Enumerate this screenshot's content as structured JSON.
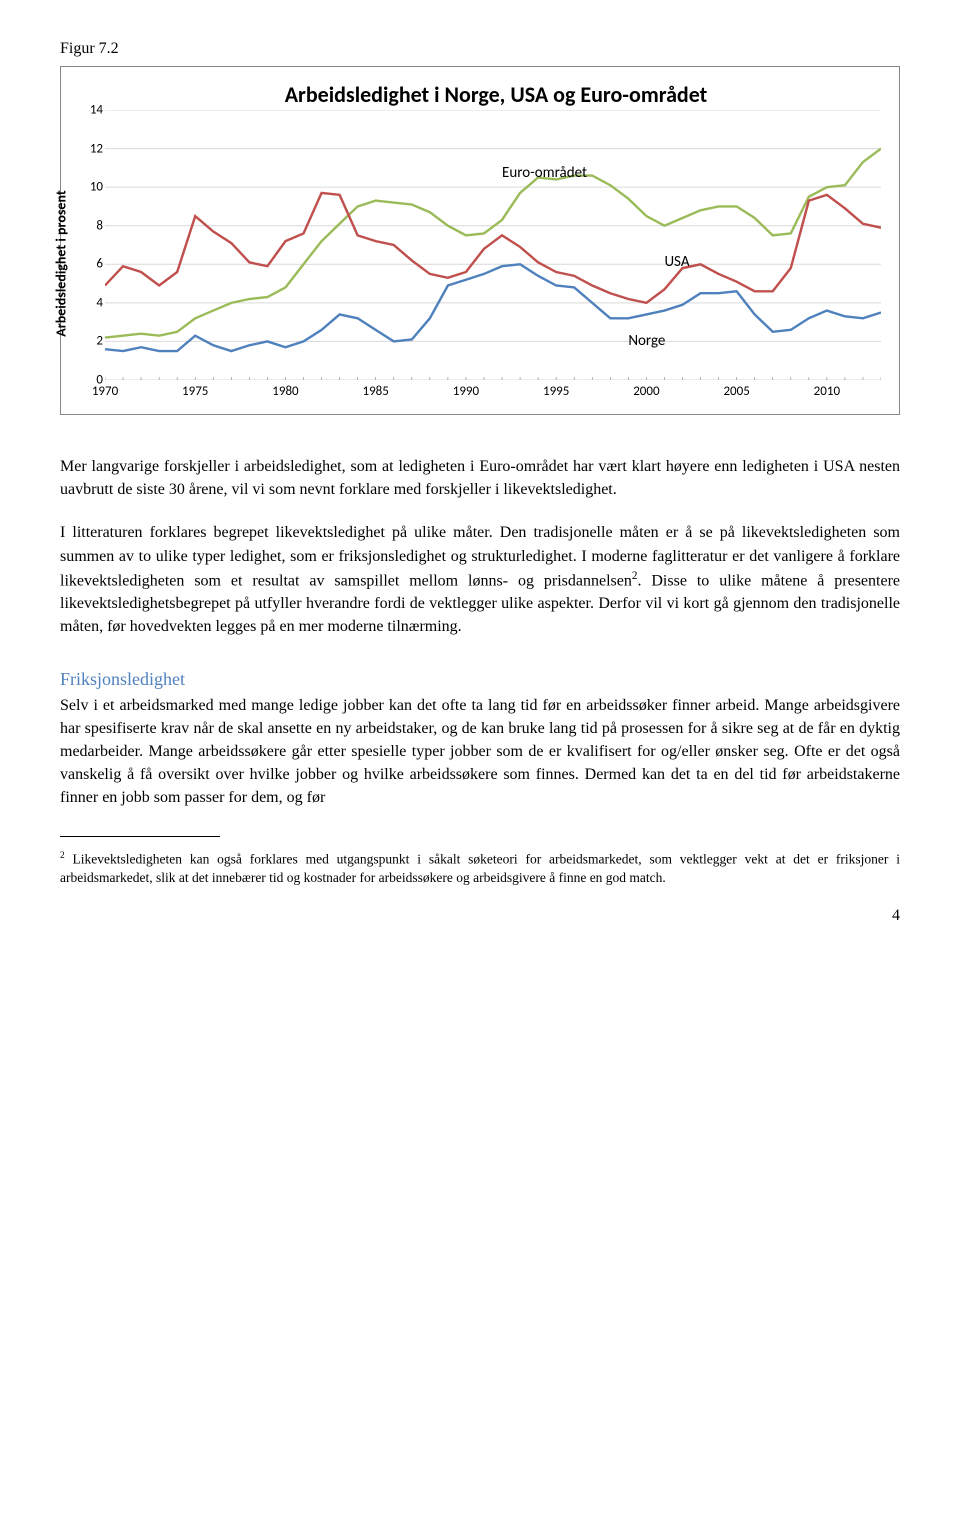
{
  "figure_label": "Figur 7.2",
  "chart": {
    "type": "line",
    "title": "Arbeidsledighet i Norge, USA og Euro-området",
    "y_axis_label": "Arbeidsledighet i prosent",
    "ylim": [
      0,
      14
    ],
    "ytick_step": 2,
    "yticks": [
      0,
      2,
      4,
      6,
      8,
      10,
      12,
      14
    ],
    "xlim": [
      1970,
      2013
    ],
    "xticks": [
      1970,
      1975,
      1980,
      1985,
      1990,
      1995,
      2000,
      2005,
      2010
    ],
    "background_color": "#ffffff",
    "grid_color": "#d9d9d9",
    "line_width": 2.4,
    "series": [
      {
        "name": "Euro-området",
        "label": "Euro-området",
        "color": "#9bbb59",
        "label_x": 1992,
        "label_y": 11.2,
        "points": [
          [
            1970,
            2.2
          ],
          [
            1971,
            2.3
          ],
          [
            1972,
            2.4
          ],
          [
            1973,
            2.3
          ],
          [
            1974,
            2.5
          ],
          [
            1975,
            3.2
          ],
          [
            1976,
            3.6
          ],
          [
            1977,
            4.0
          ],
          [
            1978,
            4.2
          ],
          [
            1979,
            4.3
          ],
          [
            1980,
            4.8
          ],
          [
            1981,
            6.0
          ],
          [
            1982,
            7.2
          ],
          [
            1983,
            8.1
          ],
          [
            1984,
            9.0
          ],
          [
            1985,
            9.3
          ],
          [
            1986,
            9.2
          ],
          [
            1987,
            9.1
          ],
          [
            1988,
            8.7
          ],
          [
            1989,
            8.0
          ],
          [
            1990,
            7.5
          ],
          [
            1991,
            7.6
          ],
          [
            1992,
            8.3
          ],
          [
            1993,
            9.7
          ],
          [
            1994,
            10.5
          ],
          [
            1995,
            10.4
          ],
          [
            1996,
            10.6
          ],
          [
            1997,
            10.6
          ],
          [
            1998,
            10.1
          ],
          [
            1999,
            9.4
          ],
          [
            2000,
            8.5
          ],
          [
            2001,
            8.0
          ],
          [
            2002,
            8.4
          ],
          [
            2003,
            8.8
          ],
          [
            2004,
            9.0
          ],
          [
            2005,
            9.0
          ],
          [
            2006,
            8.4
          ],
          [
            2007,
            7.5
          ],
          [
            2008,
            7.6
          ],
          [
            2009,
            9.5
          ],
          [
            2010,
            10.0
          ],
          [
            2011,
            10.1
          ],
          [
            2012,
            11.3
          ],
          [
            2013,
            12.0
          ]
        ]
      },
      {
        "name": "USA",
        "label": "USA",
        "color": "#c0504d",
        "label_x": 2001,
        "label_y": 6.6,
        "points": [
          [
            1970,
            4.9
          ],
          [
            1971,
            5.9
          ],
          [
            1972,
            5.6
          ],
          [
            1973,
            4.9
          ],
          [
            1974,
            5.6
          ],
          [
            1975,
            8.5
          ],
          [
            1976,
            7.7
          ],
          [
            1977,
            7.1
          ],
          [
            1978,
            6.1
          ],
          [
            1979,
            5.9
          ],
          [
            1980,
            7.2
          ],
          [
            1981,
            7.6
          ],
          [
            1982,
            9.7
          ],
          [
            1983,
            9.6
          ],
          [
            1984,
            7.5
          ],
          [
            1985,
            7.2
          ],
          [
            1986,
            7.0
          ],
          [
            1987,
            6.2
          ],
          [
            1988,
            5.5
          ],
          [
            1989,
            5.3
          ],
          [
            1990,
            5.6
          ],
          [
            1991,
            6.8
          ],
          [
            1992,
            7.5
          ],
          [
            1993,
            6.9
          ],
          [
            1994,
            6.1
          ],
          [
            1995,
            5.6
          ],
          [
            1996,
            5.4
          ],
          [
            1997,
            4.9
          ],
          [
            1998,
            4.5
          ],
          [
            1999,
            4.2
          ],
          [
            2000,
            4.0
          ],
          [
            2001,
            4.7
          ],
          [
            2002,
            5.8
          ],
          [
            2003,
            6.0
          ],
          [
            2004,
            5.5
          ],
          [
            2005,
            5.1
          ],
          [
            2006,
            4.6
          ],
          [
            2007,
            4.6
          ],
          [
            2008,
            5.8
          ],
          [
            2009,
            9.3
          ],
          [
            2010,
            9.6
          ],
          [
            2011,
            8.9
          ],
          [
            2012,
            8.1
          ],
          [
            2013,
            7.9
          ]
        ]
      },
      {
        "name": "Norge",
        "label": "Norge",
        "color": "#4f81bd",
        "label_x": 1999,
        "label_y": 2.5,
        "points": [
          [
            1970,
            1.6
          ],
          [
            1971,
            1.5
          ],
          [
            1972,
            1.7
          ],
          [
            1973,
            1.5
          ],
          [
            1974,
            1.5
          ],
          [
            1975,
            2.3
          ],
          [
            1976,
            1.8
          ],
          [
            1977,
            1.5
          ],
          [
            1978,
            1.8
          ],
          [
            1979,
            2.0
          ],
          [
            1980,
            1.7
          ],
          [
            1981,
            2.0
          ],
          [
            1982,
            2.6
          ],
          [
            1983,
            3.4
          ],
          [
            1984,
            3.2
          ],
          [
            1985,
            2.6
          ],
          [
            1986,
            2.0
          ],
          [
            1987,
            2.1
          ],
          [
            1988,
            3.2
          ],
          [
            1989,
            4.9
          ],
          [
            1990,
            5.2
          ],
          [
            1991,
            5.5
          ],
          [
            1992,
            5.9
          ],
          [
            1993,
            6.0
          ],
          [
            1994,
            5.4
          ],
          [
            1995,
            4.9
          ],
          [
            1996,
            4.8
          ],
          [
            1997,
            4.0
          ],
          [
            1998,
            3.2
          ],
          [
            1999,
            3.2
          ],
          [
            2000,
            3.4
          ],
          [
            2001,
            3.6
          ],
          [
            2002,
            3.9
          ],
          [
            2003,
            4.5
          ],
          [
            2004,
            4.5
          ],
          [
            2005,
            4.6
          ],
          [
            2006,
            3.4
          ],
          [
            2007,
            2.5
          ],
          [
            2008,
            2.6
          ],
          [
            2009,
            3.2
          ],
          [
            2010,
            3.6
          ],
          [
            2011,
            3.3
          ],
          [
            2012,
            3.2
          ],
          [
            2013,
            3.5
          ]
        ]
      }
    ]
  },
  "para1_a": "Mer langvarige forskjeller i arbeidsledighet, som at ledigheten i Euro-området har vært klart høyere enn ledigheten i USA nesten uavbrutt de siste 30 årene, vil vi som nevnt forklare med forskjeller i likevektsledighet.",
  "para2_a": "I litteraturen forklares begrepet likevektsledighet på ulike måter. Den tradisjonelle måten er å se på likevektsledigheten som summen av to ulike typer ledighet, som er friksjonsledighet og strukturledighet. I moderne faglitteratur er det vanligere å forklare likevektsledigheten som et resultat av samspillet mellom lønns- og prisdannelsen",
  "para2_b": ". Disse to ulike måtene å presentere likevektsledighetsbegrepet på utfyller hverandre fordi de vektlegger ulike aspekter. Derfor vil vi kort gå gjennom den tradisjonelle måten, før hovedvekten legges på en mer moderne tilnærming.",
  "section_heading": "Friksjonsledighet",
  "para3": "Selv i et arbeidsmarked med mange ledige jobber kan det ofte ta lang tid før en arbeidssøker finner arbeid. Mange arbeidsgivere har spesifiserte krav når de skal ansette en ny arbeidstaker, og de kan bruke lang tid på prosessen for å sikre seg at de får en dyktig medarbeider. Mange arbeidssøkere går etter spesielle typer jobber som de er kvalifisert for og/eller ønsker seg. Ofte er det også vanskelig å få oversikt over hvilke jobber og hvilke arbeidssøkere som finnes. Dermed kan det ta en del tid før arbeidstakerne finner en jobb som passer for dem, og før",
  "footnote_marker": "2",
  "footnote": " Likevektsledigheten kan også forklares med utgangspunkt i såkalt søketeori for arbeidsmarkedet, som vektlegger vekt at det er friksjoner i arbeidsmarkedet, slik at det innebærer tid og kostnader for arbeidssøkere og arbeidsgivere å finne en god match.",
  "page_number": "4"
}
